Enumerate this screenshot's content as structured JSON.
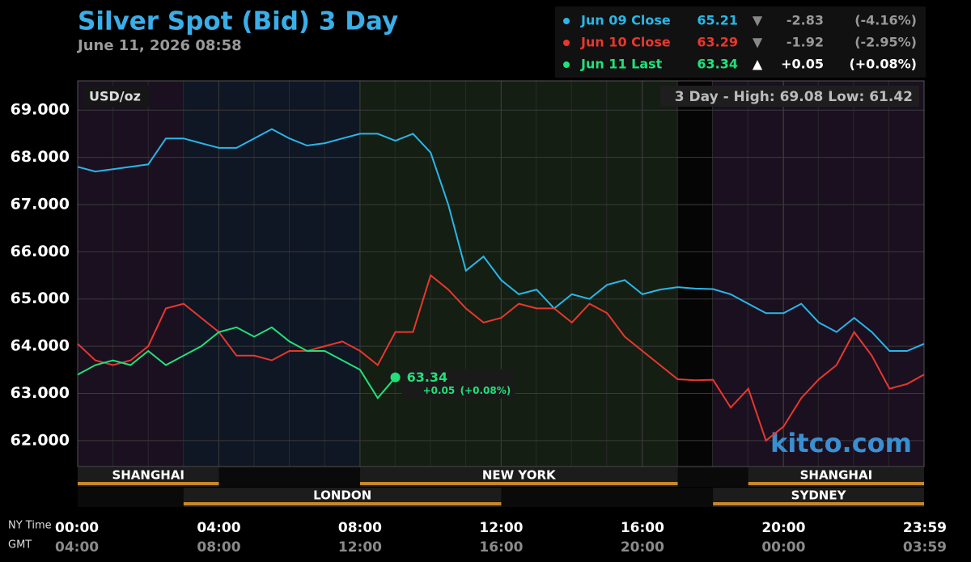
{
  "chart_data": {
    "type": "line",
    "title": "Silver Spot (Bid) 3 Day",
    "subtitle": "June 11, 2026 08:58",
    "unit_label": "USD/oz",
    "range_label": "3 Day - High: 69.08  Low: 61.42",
    "watermark": "kitco.com",
    "x_axis_name": "NY Time",
    "x2_axis_name": "GMT",
    "xlim": [
      0,
      23.98
    ],
    "ylim": [
      61.45,
      69.62
    ],
    "xticks": [
      {
        "value": 0,
        "label": "00:00"
      },
      {
        "value": 4,
        "label": "04:00"
      },
      {
        "value": 8,
        "label": "08:00"
      },
      {
        "value": 12,
        "label": "12:00"
      },
      {
        "value": 16,
        "label": "16:00"
      },
      {
        "value": 20,
        "label": "20:00"
      },
      {
        "value": 23.98,
        "label": "23:59"
      }
    ],
    "gmt_labels": [
      "04:00",
      "08:00",
      "12:00",
      "16:00",
      "20:00",
      "00:00",
      "03:59"
    ],
    "yticks": [
      {
        "value": 62,
        "label": "62.000"
      },
      {
        "value": 63,
        "label": "63.000"
      },
      {
        "value": 64,
        "label": "64.000"
      },
      {
        "value": 65,
        "label": "65.000"
      },
      {
        "value": 66,
        "label": "66.000"
      },
      {
        "value": 67,
        "label": "67.000"
      },
      {
        "value": 68,
        "label": "68.000"
      },
      {
        "value": 69,
        "label": "69.000"
      }
    ],
    "grid": true,
    "sessions_upper": [
      {
        "name": "SHANGHAI",
        "start": 0,
        "end": 4
      },
      {
        "name": "NEW YORK",
        "start": 8,
        "end": 17
      },
      {
        "name": "SHANGHAI",
        "start": 19,
        "end": 23.98
      }
    ],
    "sessions_lower": [
      {
        "name": "LONDON",
        "start": 3,
        "end": 12
      },
      {
        "name": "SYDNEY",
        "start": 18,
        "end": 23.98
      }
    ],
    "x": [
      0,
      0.5,
      1,
      1.5,
      2,
      2.5,
      3,
      3.5,
      4,
      4.5,
      5,
      5.5,
      6,
      6.5,
      7,
      7.5,
      8,
      8.5,
      9,
      9.5,
      10,
      10.5,
      11,
      11.5,
      12,
      12.5,
      13,
      13.5,
      14,
      14.5,
      15,
      15.5,
      16,
      16.5,
      17,
      17.5,
      18,
      18.5,
      19,
      19.5,
      20,
      20.5,
      21,
      21.5,
      22,
      22.5,
      23,
      23.5,
      23.98
    ],
    "series": [
      {
        "name": "Jun 09 Close",
        "color": "#29b6e8",
        "last": 65.21,
        "arrow": "▼",
        "change": "-2.83",
        "pct": "(-4.16%)",
        "values": [
          67.8,
          67.7,
          67.75,
          67.8,
          67.85,
          68.4,
          68.4,
          68.3,
          68.2,
          68.2,
          68.4,
          68.6,
          68.4,
          68.25,
          68.3,
          68.4,
          68.5,
          68.5,
          68.35,
          68.5,
          68.1,
          67.0,
          65.6,
          65.9,
          65.4,
          65.1,
          65.2,
          64.8,
          65.1,
          65.0,
          65.3,
          65.4,
          65.1,
          65.2,
          65.25,
          65.22,
          65.21,
          65.1,
          64.9,
          64.7,
          64.7,
          64.9,
          64.5,
          64.3,
          64.6,
          64.3,
          63.9,
          63.9,
          64.05
        ]
      },
      {
        "name": "Jun 10 Close",
        "color": "#e8372e",
        "last": 63.29,
        "arrow": "▼",
        "change": "-1.92",
        "pct": "(-2.95%)",
        "values": [
          64.05,
          63.7,
          63.6,
          63.7,
          64.0,
          64.8,
          64.9,
          64.6,
          64.3,
          63.8,
          63.8,
          63.7,
          63.9,
          63.9,
          64.0,
          64.1,
          63.9,
          63.6,
          64.3,
          64.3,
          65.5,
          65.2,
          64.8,
          64.5,
          64.6,
          64.9,
          64.8,
          64.8,
          64.5,
          64.9,
          64.7,
          64.2,
          63.9,
          63.6,
          63.3,
          63.28,
          63.29,
          62.7,
          63.1,
          62.0,
          62.3,
          62.9,
          63.3,
          63.6,
          64.3,
          63.8,
          63.1,
          63.2,
          63.4
        ]
      },
      {
        "name": "Jun 11 Last",
        "color": "#22e07a",
        "last": 63.34,
        "arrow": "▲",
        "change": "+0.05",
        "pct": "(+0.08%)",
        "values": [
          63.4,
          63.6,
          63.7,
          63.6,
          63.9,
          63.6,
          63.8,
          64.0,
          64.3,
          64.4,
          64.2,
          64.4,
          64.1,
          63.9,
          63.9,
          63.7,
          63.5,
          62.9,
          63.34,
          null,
          null,
          null,
          null,
          null,
          null,
          null,
          null,
          null,
          null,
          null,
          null,
          null,
          null,
          null,
          null,
          null,
          null,
          null,
          null,
          null,
          null,
          null,
          null,
          null,
          null,
          null,
          null,
          null,
          null
        ]
      }
    ]
  }
}
